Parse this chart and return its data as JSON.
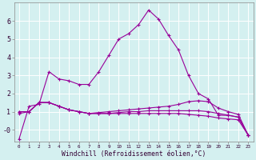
{
  "xlabel": "Windchill (Refroidissement éolien,°C)",
  "bg_color": "#d4f0f0",
  "line_color": "#990099",
  "grid_color": "#ffffff",
  "hours": [
    0,
    1,
    2,
    3,
    4,
    5,
    6,
    7,
    8,
    9,
    10,
    11,
    12,
    13,
    14,
    15,
    16,
    17,
    18,
    19,
    20,
    21,
    22,
    23
  ],
  "series1": [
    -0.5,
    1.3,
    1.4,
    3.2,
    2.8,
    2.7,
    2.5,
    2.5,
    3.2,
    4.1,
    5.0,
    5.3,
    5.8,
    6.6,
    6.1,
    5.2,
    4.4,
    3.0,
    2.0,
    1.7,
    0.8,
    0.8,
    0.7,
    -0.3
  ],
  "series2": [
    0.9,
    1.0,
    1.5,
    1.5,
    1.3,
    1.1,
    1.0,
    0.9,
    0.95,
    1.0,
    1.05,
    1.1,
    1.15,
    1.2,
    1.25,
    1.3,
    1.4,
    1.55,
    1.6,
    1.55,
    1.2,
    1.0,
    0.85,
    -0.3
  ],
  "series3": [
    1.0,
    1.0,
    1.5,
    1.5,
    1.3,
    1.1,
    1.0,
    0.9,
    0.9,
    0.9,
    0.95,
    1.0,
    1.0,
    1.05,
    1.05,
    1.05,
    1.05,
    1.05,
    1.05,
    1.0,
    0.9,
    0.8,
    0.7,
    -0.3
  ],
  "series4": [
    1.0,
    1.0,
    1.5,
    1.5,
    1.3,
    1.1,
    1.0,
    0.9,
    0.9,
    0.9,
    0.9,
    0.9,
    0.9,
    0.9,
    0.9,
    0.9,
    0.9,
    0.85,
    0.8,
    0.75,
    0.65,
    0.6,
    0.55,
    -0.3
  ],
  "ylim": [
    -0.65,
    7.0
  ],
  "yticks": [
    0,
    1,
    2,
    3,
    4,
    5,
    6
  ],
  "ytick_labels": [
    "-0",
    "1",
    "2",
    "3",
    "4",
    "5",
    "6"
  ],
  "xlim": [
    -0.5,
    23.5
  ]
}
